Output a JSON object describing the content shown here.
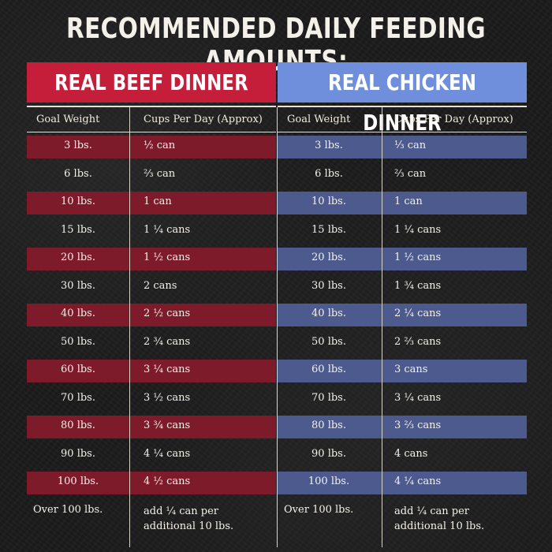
{
  "title": "RECOMMENDED DAILY FEEDING AMOUNTS:",
  "columns": {
    "weight": "Goal Weight",
    "cups": "Cups Per Day (Approx)"
  },
  "colors": {
    "beef_header": "#c41e3a",
    "beef_band": "#7e1b2b",
    "chicken_header": "#6f8fdc",
    "chicken_band": "#4c5a8e"
  },
  "beef": {
    "name": "REAL BEEF DINNER",
    "rows": [
      {
        "weight": "3 lbs.",
        "cups": "½ can"
      },
      {
        "weight": "6 lbs.",
        "cups": "⅔ can"
      },
      {
        "weight": "10 lbs.",
        "cups": "1 can"
      },
      {
        "weight": "15 lbs.",
        "cups": "1 ¼ cans"
      },
      {
        "weight": "20 lbs.",
        "cups": "1 ½ cans"
      },
      {
        "weight": "30 lbs.",
        "cups": "2 cans"
      },
      {
        "weight": "40 lbs.",
        "cups": "2 ½ cans"
      },
      {
        "weight": "50 lbs.",
        "cups": "2 ¾ cans"
      },
      {
        "weight": "60 lbs.",
        "cups": "3 ¼ cans"
      },
      {
        "weight": "70 lbs.",
        "cups": "3 ½ cans"
      },
      {
        "weight": "80 lbs.",
        "cups": "3 ¾ cans"
      },
      {
        "weight": "90 lbs.",
        "cups": "4 ¼ cans"
      },
      {
        "weight": "100 lbs.",
        "cups": "4 ½ cans"
      },
      {
        "weight": "Over 100 lbs.",
        "cups": "add ¼ can per additional 10 lbs."
      }
    ]
  },
  "chicken": {
    "name": "REAL CHICKEN DINNER",
    "rows": [
      {
        "weight": "3 lbs.",
        "cups": "⅓ can"
      },
      {
        "weight": "6 lbs.",
        "cups": "⅔ can"
      },
      {
        "weight": "10 lbs.",
        "cups": "1 can"
      },
      {
        "weight": "15 lbs.",
        "cups": "1 ¼ cans"
      },
      {
        "weight": "20 lbs.",
        "cups": "1 ½ cans"
      },
      {
        "weight": "30 lbs.",
        "cups": "1 ¾ cans"
      },
      {
        "weight": "40 lbs.",
        "cups": "2 ¼ cans"
      },
      {
        "weight": "50 lbs.",
        "cups": "2 ⅔ cans"
      },
      {
        "weight": "60 lbs.",
        "cups": "3 cans"
      },
      {
        "weight": "70 lbs.",
        "cups": "3 ¼ cans"
      },
      {
        "weight": "80 lbs.",
        "cups": "3 ⅔ cans"
      },
      {
        "weight": "90 lbs.",
        "cups": "4 cans"
      },
      {
        "weight": "100 lbs.",
        "cups": "4 ¼ cans"
      },
      {
        "weight": "Over 100 lbs.",
        "cups": "add ¼ can per additional 10 lbs."
      }
    ]
  }
}
